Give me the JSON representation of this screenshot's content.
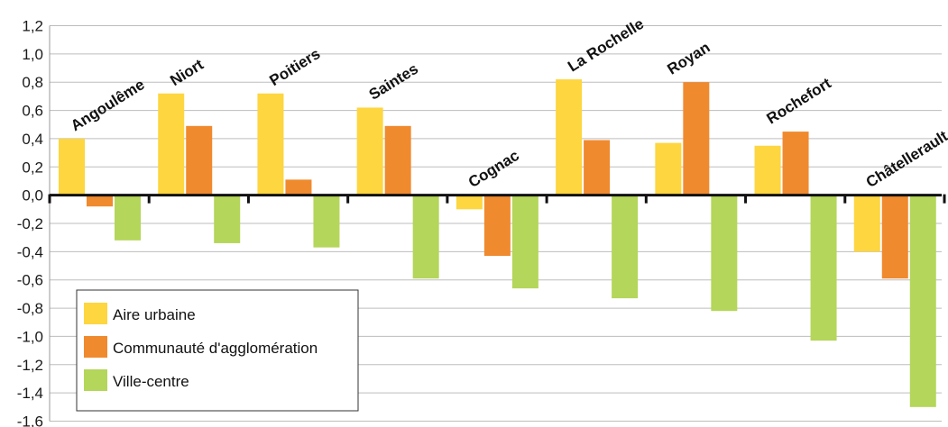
{
  "chart_data": {
    "type": "bar",
    "categories": [
      "Angoulême",
      "Niort",
      "Poitiers",
      "Saintes",
      "Cognac",
      "La Rochelle",
      "Royan",
      "Rochefort",
      "Châtellerault"
    ],
    "series": [
      {
        "name": "Aire urbaine",
        "color": "#FDD640",
        "values": [
          0.4,
          0.72,
          0.72,
          0.62,
          -0.1,
          0.82,
          0.37,
          0.35,
          -0.4
        ]
      },
      {
        "name": "Communauté d'agglomération",
        "color": "#F08A2E",
        "values": [
          -0.08,
          0.49,
          0.11,
          0.49,
          -0.43,
          0.39,
          0.8,
          0.45,
          -0.59
        ]
      },
      {
        "name": "Ville-centre",
        "color": "#B4D65A",
        "values": [
          -0.32,
          -0.34,
          -0.37,
          -0.59,
          -0.66,
          -0.73,
          -0.82,
          -1.03,
          -1.5
        ]
      }
    ],
    "yticks": [
      "1,2",
      "1,0",
      "0,8",
      "0,6",
      "0,4",
      "0,2",
      "0,0",
      "-0,2",
      "-0,4",
      "-0,6",
      "-0,8",
      "-1,0",
      "-1,2",
      "-1,4",
      "-1,6"
    ],
    "ylim": [
      -1.6,
      1.2
    ],
    "title": "",
    "xlabel": "",
    "ylabel": "",
    "grid": true,
    "legend_position": "bottom-left"
  }
}
